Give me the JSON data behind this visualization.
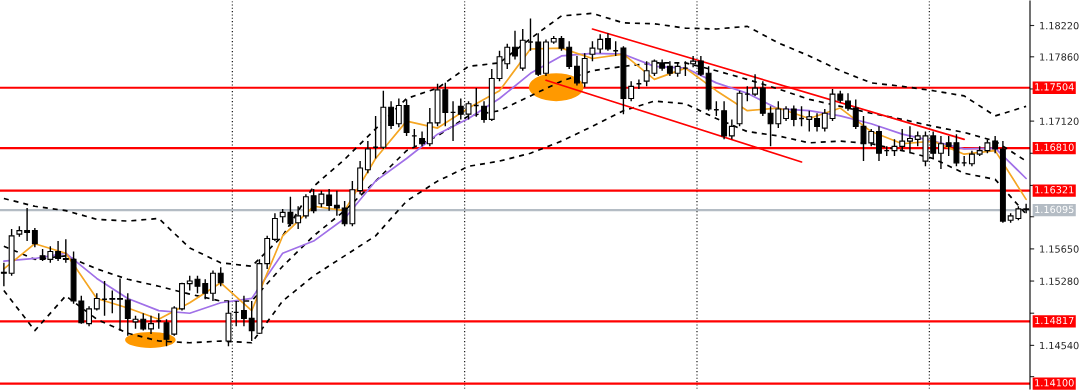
{
  "chart_data": {
    "type": "candlestick",
    "categories": [
      null,
      null,
      null,
      null,
      null,
      null,
      null,
      null,
      null,
      null,
      null,
      null,
      null,
      null,
      null,
      null,
      null,
      null,
      null,
      null,
      null,
      null,
      null,
      null,
      null,
      null,
      null,
      null,
      null,
      null,
      null,
      null,
      null,
      null,
      null,
      null,
      null,
      null,
      null,
      null,
      null,
      null,
      null,
      null,
      null,
      null,
      null,
      null,
      null,
      null,
      null,
      null,
      null,
      null,
      null,
      null,
      null,
      null,
      null,
      null,
      null,
      null,
      null,
      null,
      null,
      null,
      null,
      null,
      null,
      null,
      null,
      null,
      null,
      null,
      null,
      null,
      null,
      null,
      null,
      null,
      null,
      null,
      null,
      null,
      null,
      null,
      null,
      null,
      null,
      null,
      null,
      null,
      null,
      null,
      null,
      null,
      null,
      null,
      null,
      null,
      null,
      null,
      null,
      null,
      null,
      null,
      null,
      null,
      null,
      null,
      null,
      null,
      null,
      null,
      null,
      null,
      null,
      null,
      null,
      null,
      null,
      null,
      null,
      null,
      null,
      null,
      null,
      null,
      null,
      null,
      null,
      null,
      null
    ],
    "ohlc": [
      [
        1.1538,
        1.1549,
        1.1522,
        1.1537
      ],
      [
        1.1537,
        1.1588,
        1.1534,
        1.158
      ],
      [
        1.1582,
        1.1591,
        1.1579,
        1.1586
      ],
      [
        1.1586,
        1.1612,
        1.1574,
        1.1584
      ],
      [
        1.1586,
        1.1589,
        1.1567,
        1.1571
      ],
      [
        1.1557,
        1.1565,
        1.1551,
        1.1553
      ],
      [
        1.1553,
        1.1568,
        1.1549,
        1.1562
      ],
      [
        1.1562,
        1.1574,
        1.1551,
        1.1554
      ],
      [
        1.1554,
        1.1576,
        1.1549,
        1.1553
      ],
      [
        1.1553,
        1.1562,
        1.1502,
        1.1505
      ],
      [
        1.1505,
        1.1511,
        1.1479,
        1.148
      ],
      [
        1.1479,
        1.1499,
        1.1476,
        1.1496
      ],
      [
        1.1496,
        1.1514,
        1.1494,
        1.1508
      ],
      [
        1.1507,
        1.1528,
        1.1488,
        1.1507
      ],
      [
        1.1508,
        1.1517,
        1.1491,
        1.1507
      ],
      [
        1.1508,
        1.1531,
        1.1471,
        1.1507
      ],
      [
        1.1506,
        1.1514,
        1.1465,
        1.1485
      ],
      [
        1.1481,
        1.1488,
        1.1473,
        1.1484
      ],
      [
        1.1484,
        1.1491,
        1.1471,
        1.1473
      ],
      [
        1.1473,
        1.1488,
        1.1467,
        1.1479
      ],
      [
        1.1482,
        1.1491,
        1.1473,
        1.1482
      ],
      [
        1.148,
        1.1484,
        1.1453,
        1.1461
      ],
      [
        1.1467,
        1.1499,
        1.1465,
        1.1497
      ],
      [
        1.1496,
        1.1526,
        1.1494,
        1.1525
      ],
      [
        1.1525,
        1.1534,
        1.1517,
        1.1528
      ],
      [
        1.153,
        1.1534,
        1.1514,
        1.1522
      ],
      [
        1.1525,
        1.153,
        1.1507,
        1.1514
      ],
      [
        1.1514,
        1.154,
        1.1505,
        1.1537
      ],
      [
        1.1537,
        1.1544,
        1.1522,
        1.1526
      ],
      [
        1.1459,
        1.1505,
        1.1453,
        1.1491
      ],
      [
        1.1492,
        1.1505,
        1.1476,
        1.1492
      ],
      [
        1.1494,
        1.1511,
        1.1476,
        1.1485
      ],
      [
        1.1485,
        1.1505,
        1.1459,
        1.1471
      ],
      [
        1.1468,
        1.1553,
        1.1467,
        1.1548
      ],
      [
        1.1548,
        1.158,
        1.1542,
        1.1577
      ],
      [
        1.1576,
        1.1606,
        1.1574,
        1.16
      ],
      [
        1.1602,
        1.1611,
        1.1595,
        1.1607
      ],
      [
        1.1607,
        1.1625,
        1.1591,
        1.1594
      ],
      [
        1.1595,
        1.1614,
        1.1588,
        1.1603
      ],
      [
        1.1603,
        1.1628,
        1.16,
        1.1625
      ],
      [
        1.1626,
        1.1634,
        1.1606,
        1.1609
      ],
      [
        1.1617,
        1.1632,
        1.1613,
        1.1628
      ],
      [
        1.1627,
        1.1634,
        1.1609,
        1.1615
      ],
      [
        1.1615,
        1.1632,
        1.1603,
        1.1612
      ],
      [
        1.1612,
        1.162,
        1.1591,
        1.1594
      ],
      [
        1.1594,
        1.1643,
        1.1591,
        1.1633
      ],
      [
        1.1632,
        1.1666,
        1.1628,
        1.1658
      ],
      [
        1.1656,
        1.1689,
        1.1652,
        1.168
      ],
      [
        1.1682,
        1.1718,
        1.1669,
        1.1682
      ],
      [
        1.1682,
        1.1747,
        1.168,
        1.1728
      ],
      [
        1.1728,
        1.1735,
        1.1703,
        1.1707
      ],
      [
        1.1709,
        1.1738,
        1.1705,
        1.173
      ],
      [
        1.173,
        1.1737,
        1.1695,
        1.1699
      ],
      [
        1.1695,
        1.1703,
        1.1683,
        1.1695
      ],
      [
        1.1692,
        1.17,
        1.1683,
        1.1686
      ],
      [
        1.1686,
        1.1727,
        1.1683,
        1.171
      ],
      [
        1.171,
        1.1755,
        1.1706,
        1.1748
      ],
      [
        1.1748,
        1.1756,
        1.1706,
        1.1722
      ],
      [
        1.1722,
        1.1735,
        1.1689,
        1.1722
      ],
      [
        1.1729,
        1.1738,
        1.1714,
        1.172
      ],
      [
        1.172,
        1.1735,
        1.1714,
        1.1732
      ],
      [
        1.173,
        1.175,
        1.1717,
        1.173
      ],
      [
        1.1729,
        1.1735,
        1.171,
        1.1714
      ],
      [
        1.1714,
        1.1772,
        1.1712,
        1.1761
      ],
      [
        1.1761,
        1.1793,
        1.1758,
        1.1786
      ],
      [
        1.1778,
        1.1801,
        1.1772,
        1.1797
      ],
      [
        1.1797,
        1.1816,
        1.1783,
        1.1787
      ],
      [
        1.1773,
        1.1818,
        1.177,
        1.1805
      ],
      [
        1.1803,
        1.183,
        1.1793,
        1.1803
      ],
      [
        1.1803,
        1.1813,
        1.1764,
        1.1766
      ],
      [
        1.1767,
        1.1806,
        1.1764,
        1.1803
      ],
      [
        1.1803,
        1.181,
        1.1801,
        1.1807
      ],
      [
        1.1807,
        1.181,
        1.1793,
        1.1796
      ],
      [
        1.1797,
        1.1804,
        1.1772,
        1.1775
      ],
      [
        1.1775,
        1.1787,
        1.1753,
        1.1756
      ],
      [
        1.1756,
        1.179,
        1.1751,
        1.1784
      ],
      [
        1.1789,
        1.1804,
        1.1781,
        1.1796
      ],
      [
        1.1795,
        1.1812,
        1.179,
        1.1806
      ],
      [
        1.1807,
        1.1813,
        1.1793,
        1.1795
      ],
      [
        1.1793,
        1.1804,
        1.1787,
        1.1793
      ],
      [
        1.1796,
        1.1798,
        1.172,
        1.1738
      ],
      [
        1.1738,
        1.1758,
        1.1735,
        1.1752
      ],
      [
        1.1755,
        1.176,
        1.1749,
        1.1755
      ],
      [
        1.1758,
        1.1781,
        1.1752,
        1.177
      ],
      [
        1.1767,
        1.1783,
        1.1764,
        1.1781
      ],
      [
        1.1779,
        1.1783,
        1.177,
        1.1773
      ],
      [
        1.1775,
        1.1781,
        1.1764,
        1.1767
      ],
      [
        1.1767,
        1.1779,
        1.1763,
        1.1775
      ],
      [
        1.1773,
        1.1781,
        1.1764,
        1.1773
      ],
      [
        1.1778,
        1.1787,
        1.1774,
        1.1781
      ],
      [
        1.1781,
        1.1787,
        1.1764,
        1.1766
      ],
      [
        1.1767,
        1.1775,
        1.1724,
        1.1726
      ],
      [
        1.1725,
        1.1735,
        1.1718,
        1.1725
      ],
      [
        1.1724,
        1.1735,
        1.1691,
        1.1695
      ],
      [
        1.1695,
        1.1714,
        1.1691,
        1.1706
      ],
      [
        1.1709,
        1.1747,
        1.1706,
        1.1744
      ],
      [
        1.1743,
        1.1752,
        1.1735,
        1.1743
      ],
      [
        1.1743,
        1.1766,
        1.1741,
        1.175
      ],
      [
        1.175,
        1.1758,
        1.1718,
        1.1721
      ],
      [
        1.1721,
        1.1729,
        1.1683,
        1.1709
      ],
      [
        1.1709,
        1.1735,
        1.1704,
        1.1726
      ],
      [
        1.1715,
        1.1729,
        1.1712,
        1.1726
      ],
      [
        1.1726,
        1.173,
        1.1706,
        1.1714
      ],
      [
        1.1715,
        1.1729,
        1.1706,
        1.1715
      ],
      [
        1.1714,
        1.1724,
        1.17,
        1.1717
      ],
      [
        1.1715,
        1.1721,
        1.17,
        1.1706
      ],
      [
        1.1704,
        1.1726,
        1.17,
        1.1721
      ],
      [
        1.1715,
        1.1749,
        1.1712,
        1.1743
      ],
      [
        1.1743,
        1.1747,
        1.1733,
        1.1736
      ],
      [
        1.1735,
        1.1744,
        1.1724,
        1.1727
      ],
      [
        1.1727,
        1.1737,
        1.1703,
        1.1706
      ],
      [
        1.1706,
        1.1718,
        1.1666,
        1.1686
      ],
      [
        1.1687,
        1.1703,
        1.1683,
        1.17
      ],
      [
        1.17,
        1.1706,
        1.1666,
        1.1675
      ],
      [
        1.1678,
        1.1683,
        1.1672,
        1.1678
      ],
      [
        1.1678,
        1.1691,
        1.1672,
        1.1683
      ],
      [
        1.1683,
        1.1703,
        1.1678,
        1.1689
      ],
      [
        1.1689,
        1.1706,
        1.1675,
        1.1692
      ],
      [
        1.1691,
        1.17,
        1.1683,
        1.1695
      ],
      [
        1.1666,
        1.17,
        1.166,
        1.1695
      ],
      [
        1.1695,
        1.17,
        1.1668,
        1.1675
      ],
      [
        1.1675,
        1.1695,
        1.1657,
        1.1686
      ],
      [
        1.1687,
        1.1695,
        1.1672,
        1.1683
      ],
      [
        1.1687,
        1.1697,
        1.166,
        1.1664
      ],
      [
        1.1664,
        1.1672,
        1.166,
        1.1664
      ],
      [
        1.1663,
        1.1678,
        1.166,
        1.1674
      ],
      [
        1.1674,
        1.1683,
        1.1672,
        1.1678
      ],
      [
        1.1678,
        1.1691,
        1.1675,
        1.1687
      ],
      [
        1.1689,
        1.1695,
        1.1675,
        1.168
      ],
      [
        1.168,
        1.1689,
        1.1595,
        1.1597
      ],
      [
        1.1598,
        1.1606,
        1.1595,
        1.1603
      ],
      [
        1.16,
        1.1614,
        1.1598,
        1.1611
      ],
      [
        1.1611,
        1.1617,
        1.1606,
        1.161
      ]
    ],
    "series": [
      {
        "type": "line",
        "color": "#000000",
        "line_style": "dashed",
        "values": [
          1.1623,
          null,
          null,
          null,
          1.1614,
          null,
          null,
          null,
          1.1609,
          null,
          null,
          null,
          1.1599,
          null,
          null,
          null,
          1.1597,
          null,
          null,
          null,
          1.16,
          null,
          null,
          null,
          1.1566,
          null,
          null,
          null,
          1.1549,
          null,
          null,
          null,
          1.1545,
          null,
          null,
          null,
          1.158,
          null,
          null,
          null,
          1.1637,
          null,
          null,
          null,
          1.1668,
          null,
          null,
          null,
          1.1703,
          null,
          null,
          null,
          1.1738,
          null,
          null,
          null,
          1.175,
          null,
          null,
          null,
          1.1775,
          null,
          null,
          null,
          1.1779,
          null,
          null,
          null,
          1.1807,
          null,
          null,
          null,
          1.1833,
          null,
          null,
          null,
          1.1836,
          null,
          null,
          null,
          1.1825,
          null,
          null,
          null,
          1.1824,
          null,
          null,
          null,
          1.1819,
          null,
          null,
          null,
          1.1818,
          null,
          null,
          null,
          1.1821,
          null,
          null,
          null,
          1.1802,
          null,
          null,
          null,
          1.1787,
          null,
          null,
          null,
          1.177,
          null,
          null,
          null,
          1.1756,
          null,
          null,
          null,
          1.1752,
          null,
          null,
          null,
          1.1747,
          null,
          null,
          null,
          1.1741,
          null,
          null,
          null,
          1.1718,
          null,
          null,
          null,
          1.1729
        ]
      },
      {
        "type": "line",
        "color": "#000000",
        "line_style": "dashed",
        "values": [
          1.1568,
          null,
          null,
          null,
          1.1553,
          null,
          null,
          null,
          1.1557,
          null,
          null,
          null,
          1.1542,
          null,
          null,
          null,
          1.153,
          null,
          null,
          null,
          1.1522,
          null,
          null,
          null,
          1.1513,
          null,
          null,
          null,
          1.1505,
          null,
          null,
          null,
          1.1505,
          null,
          null,
          null,
          1.1545,
          null,
          null,
          null,
          1.158,
          null,
          null,
          null,
          1.1609,
          null,
          null,
          null,
          1.1643,
          null,
          null,
          null,
          1.1678,
          null,
          null,
          null,
          1.1695,
          null,
          null,
          null,
          1.1718,
          null,
          null,
          null,
          1.1724,
          null,
          null,
          null,
          1.1741,
          null,
          null,
          null,
          1.1758,
          null,
          null,
          null,
          1.177,
          null,
          null,
          null,
          1.1775,
          null,
          null,
          null,
          1.1779,
          null,
          null,
          null,
          1.1779,
          null,
          null,
          null,
          1.177,
          null,
          null,
          null,
          1.176,
          null,
          null,
          null,
          1.1749,
          null,
          null,
          null,
          1.1737,
          null,
          null,
          null,
          1.1729,
          null,
          null,
          null,
          1.1721,
          null,
          null,
          null,
          1.1714,
          null,
          null,
          null,
          1.1706,
          null,
          null,
          null,
          1.1699,
          null,
          null,
          null,
          1.1689,
          null,
          null,
          null,
          1.1666
        ]
      },
      {
        "type": "line",
        "color": "#000000",
        "line_style": "dashed",
        "values": [
          1.1517,
          null,
          null,
          null,
          1.1471,
          null,
          null,
          null,
          1.1511,
          null,
          null,
          null,
          1.1484,
          null,
          null,
          null,
          1.1468,
          null,
          null,
          null,
          1.1459,
          null,
          null,
          null,
          1.1457,
          null,
          null,
          null,
          1.1459,
          null,
          null,
          null,
          1.1457,
          null,
          null,
          null,
          1.1505,
          null,
          null,
          null,
          1.1534,
          null,
          null,
          null,
          1.1557,
          null,
          null,
          null,
          1.158,
          null,
          null,
          null,
          1.162,
          null,
          null,
          null,
          1.1643,
          null,
          null,
          null,
          1.166,
          null,
          null,
          null,
          1.1666,
          null,
          null,
          null,
          1.1675,
          null,
          null,
          null,
          1.1689,
          null,
          null,
          null,
          1.1706,
          null,
          null,
          null,
          1.1724,
          null,
          null,
          null,
          1.1735,
          null,
          null,
          null,
          1.1732,
          null,
          null,
          null,
          1.1715,
          null,
          null,
          null,
          1.17,
          null,
          null,
          null,
          1.1695,
          null,
          null,
          null,
          1.1687,
          null,
          null,
          null,
          1.1689,
          null,
          null,
          null,
          1.1686,
          null,
          null,
          null,
          1.1678,
          null,
          null,
          null,
          1.1669,
          null,
          null,
          null,
          1.1652,
          null,
          null,
          null,
          1.1645,
          null,
          null,
          null,
          1.1605
        ]
      },
      {
        "type": "line",
        "color": "#a070e8",
        "line_style": "solid",
        "values": [
          1.1551,
          null,
          null,
          null,
          1.1554,
          null,
          null,
          null,
          1.156,
          null,
          null,
          null,
          1.1531,
          null,
          null,
          null,
          1.1508,
          null,
          null,
          null,
          1.1494,
          null,
          null,
          null,
          1.1491,
          null,
          null,
          null,
          1.1503,
          null,
          null,
          null,
          1.1508,
          null,
          null,
          null,
          1.156,
          null,
          null,
          null,
          1.1574,
          null,
          null,
          null,
          1.16,
          null,
          null,
          null,
          1.1643,
          null,
          null,
          null,
          1.1669,
          null,
          null,
          null,
          1.1697,
          null,
          null,
          null,
          1.1715,
          null,
          null,
          null,
          1.1738,
          null,
          null,
          null,
          1.1767,
          null,
          null,
          null,
          1.1787,
          null,
          null,
          null,
          1.179,
          null,
          null,
          null,
          1.1789,
          null,
          null,
          null,
          1.1775,
          null,
          null,
          null,
          1.1773,
          null,
          null,
          null,
          1.1756,
          null,
          null,
          null,
          1.1744,
          null,
          null,
          null,
          1.1726,
          null,
          null,
          null,
          1.1724,
          null,
          null,
          null,
          1.1718,
          null,
          null,
          null,
          1.1709,
          null,
          null,
          null,
          1.1697,
          null,
          null,
          null,
          1.1689,
          null,
          null,
          null,
          1.168,
          null,
          null,
          null,
          1.1681,
          null,
          null,
          null,
          1.1646
        ]
      },
      {
        "type": "line",
        "color": "#f5a623",
        "line_style": "solid",
        "values": [
          1.1542,
          null,
          null,
          null,
          1.1571,
          null,
          null,
          null,
          1.156,
          null,
          null,
          null,
          1.1508,
          null,
          null,
          null,
          1.1497,
          null,
          null,
          null,
          1.1484,
          null,
          null,
          null,
          1.1503,
          null,
          null,
          null,
          1.1526,
          null,
          null,
          null,
          1.1494,
          null,
          null,
          null,
          1.158,
          null,
          null,
          null,
          1.1614,
          null,
          null,
          null,
          1.1609,
          null,
          null,
          null,
          1.1669,
          null,
          null,
          null,
          1.1712,
          null,
          null,
          null,
          1.1704,
          null,
          null,
          null,
          1.1727,
          null,
          null,
          null,
          1.1747,
          null,
          null,
          null,
          1.1795,
          null,
          null,
          null,
          1.1796,
          null,
          null,
          null,
          1.1784,
          null,
          null,
          null,
          1.1789,
          null,
          null,
          null,
          1.176,
          null,
          null,
          null,
          1.1773,
          null,
          null,
          null,
          1.1747,
          null,
          null,
          null,
          1.1724,
          null,
          null,
          null,
          1.1727,
          null,
          null,
          null,
          1.1715,
          null,
          null,
          null,
          1.1727,
          null,
          null,
          null,
          1.17,
          null,
          null,
          null,
          1.1686,
          null,
          null,
          null,
          1.1689,
          null,
          null,
          null,
          1.1674,
          null,
          null,
          null,
          1.1678,
          null,
          null,
          null,
          1.1622
        ]
      },
      {
        "type": "line",
        "color": "#ff0000",
        "line_style": "solid",
        "values": [
          null,
          null,
          null,
          null,
          null,
          null,
          null,
          null,
          null,
          null,
          null,
          null,
          null,
          null,
          null,
          null,
          null,
          null,
          null,
          null,
          null,
          null,
          null,
          null,
          null,
          null,
          null,
          null,
          null,
          null,
          null,
          null,
          null,
          null,
          null,
          null,
          null,
          null,
          null,
          null,
          null,
          null,
          null,
          null,
          null,
          null,
          null,
          null,
          null,
          null,
          null,
          null,
          null,
          null,
          null,
          null,
          null,
          null,
          null,
          null,
          null,
          null,
          null,
          null,
          null,
          null,
          null,
          null,
          null,
          null,
          null,
          null,
          null,
          null,
          null,
          null,
          1.1818,
          null,
          null,
          null,
          null,
          null,
          null,
          null,
          null,
          null,
          null,
          null,
          null,
          null,
          null,
          null,
          null,
          null,
          null,
          null,
          null,
          null,
          null,
          null,
          null,
          null,
          null,
          null,
          null,
          null,
          null,
          null,
          null,
          null,
          null,
          null,
          null,
          null,
          null,
          null,
          null,
          null,
          null,
          null,
          null,
          null,
          null,
          null,
          1.1691,
          null,
          null,
          null,
          null,
          null,
          null,
          null,
          null
        ]
      },
      {
        "type": "line",
        "color": "#ff0000",
        "line_style": "solid",
        "values": [
          null,
          null,
          null,
          null,
          null,
          null,
          null,
          null,
          null,
          null,
          null,
          null,
          null,
          null,
          null,
          null,
          null,
          null,
          null,
          null,
          null,
          null,
          null,
          null,
          null,
          null,
          null,
          null,
          null,
          null,
          null,
          null,
          null,
          null,
          null,
          null,
          null,
          null,
          null,
          null,
          null,
          null,
          null,
          null,
          null,
          null,
          null,
          null,
          null,
          null,
          null,
          null,
          null,
          null,
          null,
          null,
          null,
          null,
          null,
          null,
          null,
          null,
          null,
          null,
          null,
          null,
          null,
          null,
          null,
          null,
          1.1759,
          null,
          null,
          null,
          null,
          null,
          null,
          null,
          null,
          null,
          null,
          null,
          null,
          null,
          null,
          null,
          null,
          null,
          null,
          null,
          null,
          null,
          null,
          null,
          null,
          null,
          null,
          null,
          null,
          null,
          null,
          null,
          null,
          1.1665,
          null,
          null,
          null,
          null,
          null,
          null,
          null,
          null,
          null,
          null,
          null,
          null,
          null,
          null,
          null,
          null,
          null,
          null,
          null,
          null,
          null,
          null,
          null,
          null,
          null,
          null,
          null,
          null,
          null
        ]
      }
    ],
    "ylim": [
      1.1404,
      1.185
    ],
    "yticks": [
      {
        "value": 1.1822,
        "label": "1.18220"
      },
      {
        "value": 1.1786,
        "label": "1.17860"
      },
      {
        "value": 1.1749,
        "label": null
      },
      {
        "value": 1.1712,
        "label": "1.17120"
      },
      {
        "value": 1.1675,
        "label": null
      },
      {
        "value": 1.1638,
        "label": null
      },
      {
        "value": 1.1602,
        "label": null
      },
      {
        "value": 1.1565,
        "label": "1.15650"
      },
      {
        "value": 1.1528,
        "label": "1.15280"
      },
      {
        "value": 1.1491,
        "label": null
      },
      {
        "value": 1.1454,
        "label": "1.14540"
      },
      {
        "value": 1.1418,
        "label": null
      }
    ],
    "ref_lines": [
      {
        "axis": "y",
        "value": 1.17504,
        "label": "1.17504",
        "color": "#ff0000"
      },
      {
        "axis": "y",
        "value": 1.1681,
        "label": "1.16810",
        "color": "#ff0000"
      },
      {
        "axis": "y",
        "value": 1.16321,
        "label": "1.16321",
        "color": "#ff0000"
      },
      {
        "axis": "y",
        "value": 1.16095,
        "label": "1.16095",
        "color": "#b4bcc4"
      },
      {
        "axis": "y",
        "value": 1.14817,
        "label": "1.14817",
        "color": "#ff0000"
      },
      {
        "axis": "y",
        "value": 1.141,
        "label": "1.14100",
        "color": "#ff0000"
      }
    ],
    "tick_labels": "y",
    "grid": false
  }
}
